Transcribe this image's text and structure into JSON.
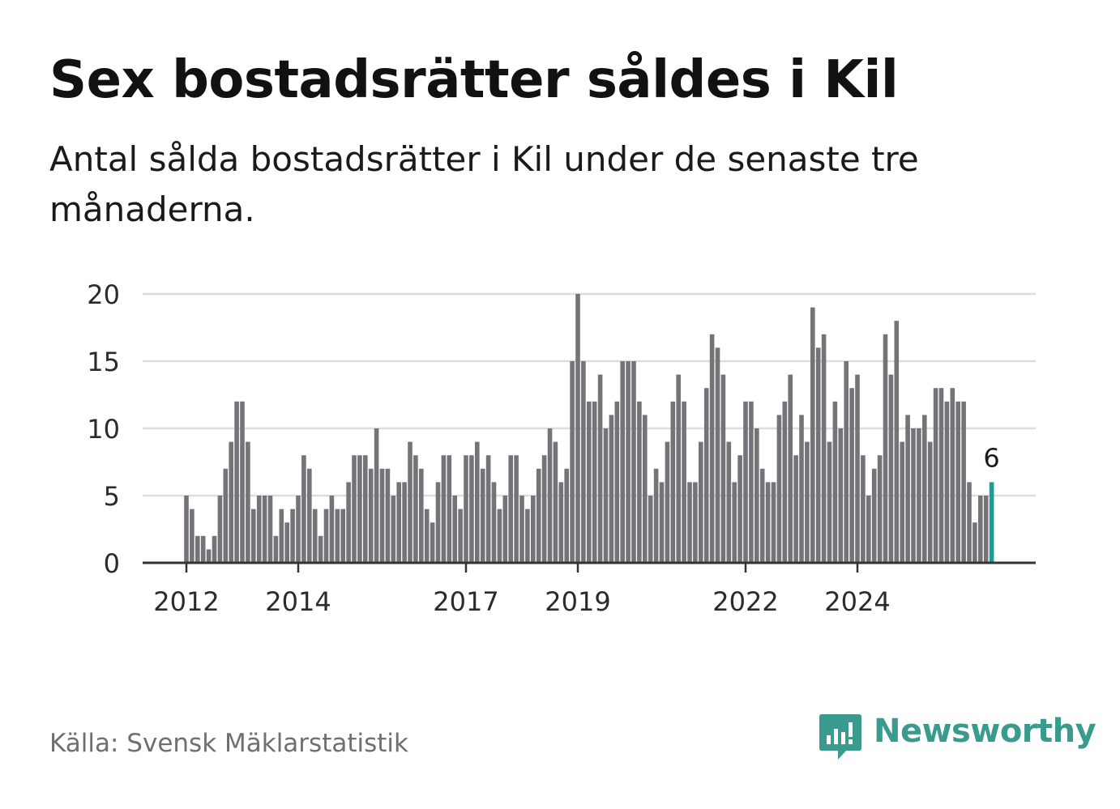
{
  "title": "Sex bostadsrätter såldes i Kil",
  "subtitle": "Antal sålda bostadsrätter i Kil under de senaste tre månaderna.",
  "source": "Källa: Svensk Mäklarstatistik",
  "brand": {
    "name": "Newsworthy",
    "icon": "newsworthy-logo-icon"
  },
  "colors": {
    "bar": "#747377",
    "highlight": "#1a9e93",
    "grid": "#dddddd",
    "axis": "#333333",
    "brand": "#3a9a8e"
  },
  "chart_data": {
    "type": "bar",
    "title": "Sex bostadsrätter såldes i Kil",
    "xlabel": "",
    "ylabel": "",
    "ylim": [
      0,
      20
    ],
    "yticks": [
      0,
      5,
      10,
      15,
      20
    ],
    "grid": true,
    "start": "2012-01",
    "x_ticks": [
      {
        "label": "2012",
        "index": 0
      },
      {
        "label": "2014",
        "index": 20
      },
      {
        "label": "2017",
        "index": 50
      },
      {
        "label": "2019",
        "index": 70
      },
      {
        "label": "2022",
        "index": 100
      },
      {
        "label": "2024",
        "index": 120
      }
    ],
    "values": [
      5,
      4,
      2,
      2,
      1,
      2,
      5,
      7,
      9,
      12,
      12,
      9,
      4,
      5,
      5,
      5,
      2,
      4,
      3,
      4,
      5,
      8,
      7,
      4,
      2,
      4,
      5,
      4,
      4,
      6,
      8,
      8,
      8,
      7,
      10,
      7,
      7,
      5,
      6,
      6,
      9,
      8,
      7,
      4,
      3,
      6,
      8,
      8,
      5,
      4,
      8,
      8,
      9,
      7,
      8,
      6,
      4,
      5,
      8,
      8,
      5,
      4,
      5,
      7,
      8,
      10,
      9,
      6,
      7,
      15,
      20,
      15,
      12,
      12,
      14,
      10,
      11,
      12,
      15,
      15,
      15,
      12,
      11,
      5,
      7,
      6,
      9,
      12,
      14,
      12,
      6,
      6,
      9,
      13,
      17,
      16,
      14,
      9,
      6,
      8,
      12,
      12,
      10,
      7,
      6,
      6,
      11,
      12,
      14,
      8,
      11,
      9,
      19,
      16,
      17,
      9,
      12,
      10,
      15,
      13,
      14,
      8,
      5,
      7,
      8,
      17,
      14,
      18,
      9,
      11,
      10,
      10,
      11,
      9,
      13,
      13,
      12,
      13,
      12,
      12,
      6,
      3,
      5,
      5,
      6
    ],
    "highlight_last": true,
    "annotation": {
      "index": 144,
      "label": "6"
    }
  }
}
